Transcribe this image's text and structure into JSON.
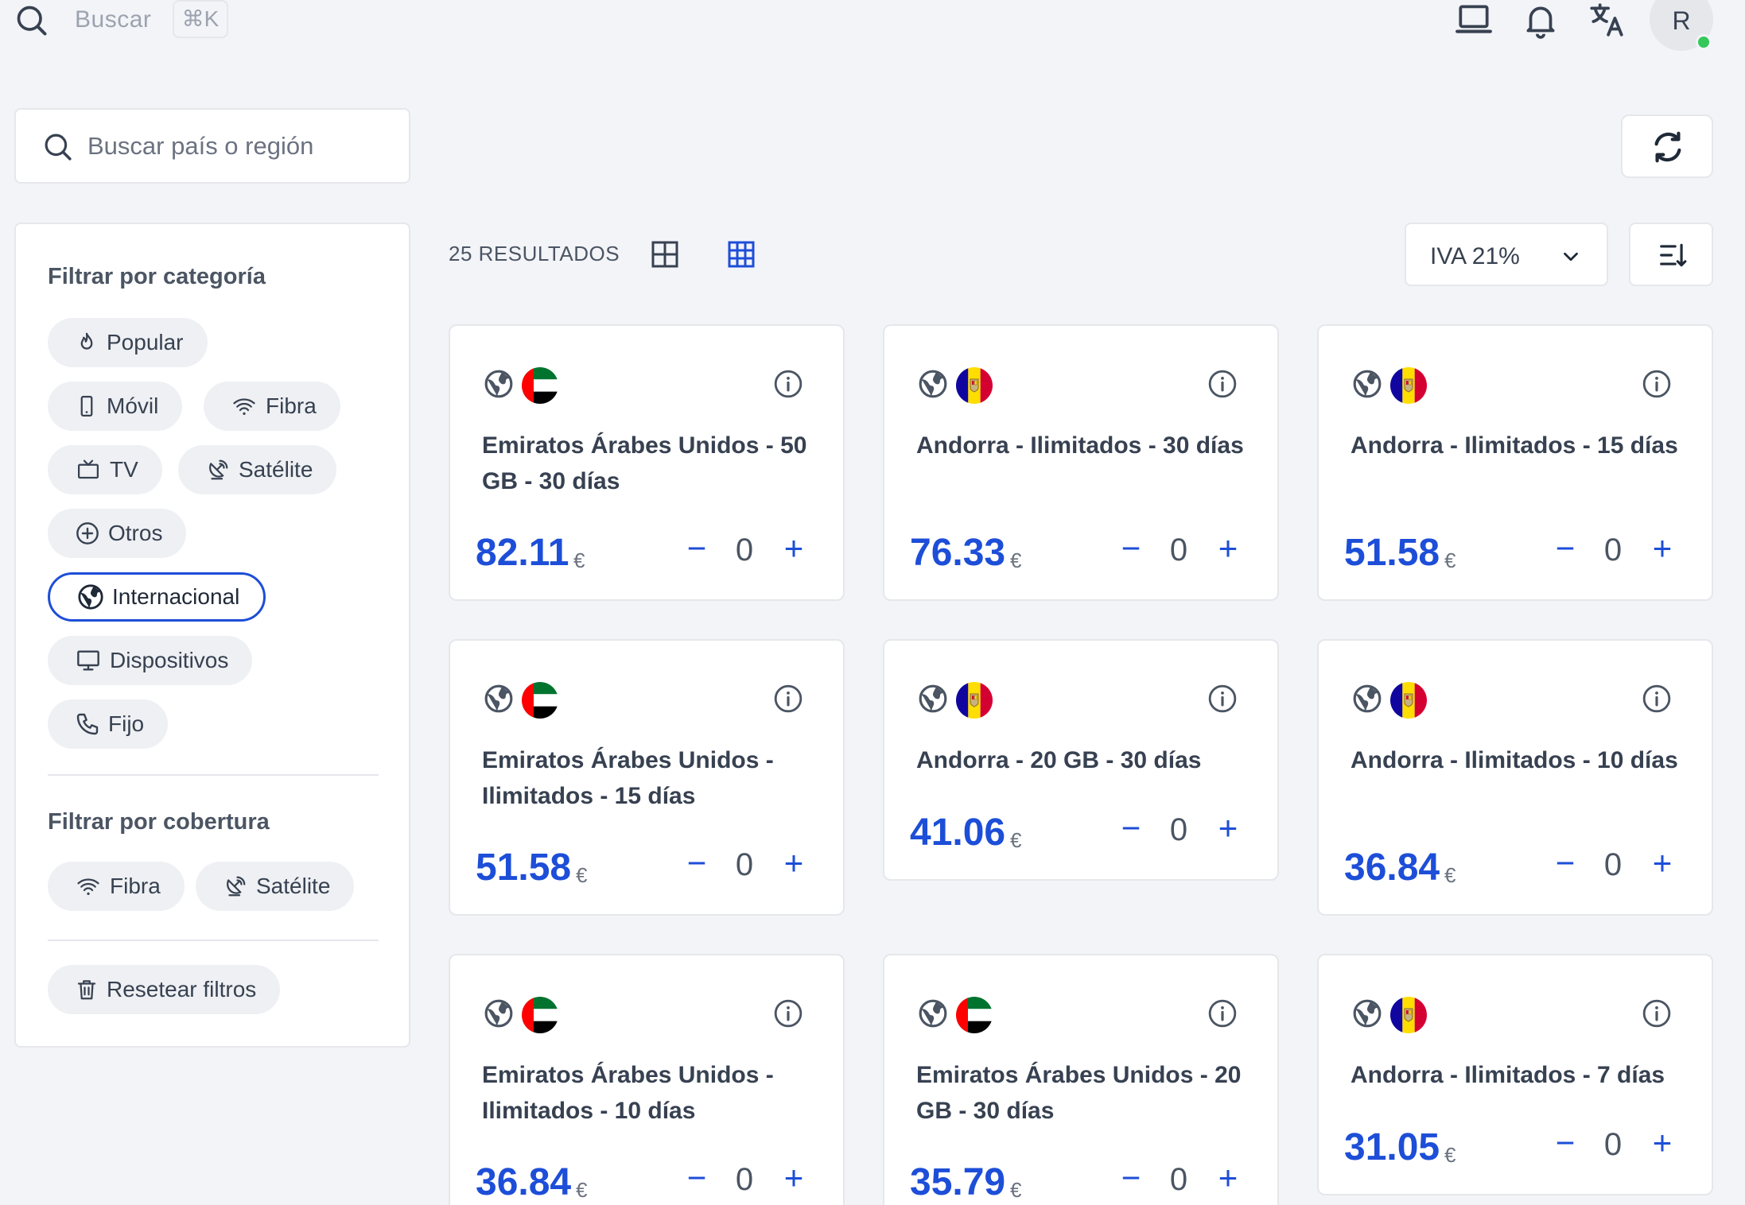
{
  "topbar": {
    "search_placeholder": "Buscar",
    "shortcut": "⌘K",
    "avatar_initial": "R"
  },
  "region_search": {
    "placeholder": "Buscar país o región"
  },
  "sidebar": {
    "category_title": "Filtrar por categoría",
    "categories": [
      {
        "label": "Popular",
        "icon": "flame-icon"
      },
      {
        "label": "Móvil",
        "icon": "phone-icon"
      },
      {
        "label": "Fibra",
        "icon": "wifi-icon"
      },
      {
        "label": "TV",
        "icon": "tv-icon"
      },
      {
        "label": "Satélite",
        "icon": "satellite-icon"
      },
      {
        "label": "Otros",
        "icon": "plus-circle-icon"
      },
      {
        "label": "Internacional",
        "icon": "globe-icon",
        "active": true
      },
      {
        "label": "Dispositivos",
        "icon": "monitor-icon"
      },
      {
        "label": "Fijo",
        "icon": "landline-icon"
      }
    ],
    "coverage_title": "Filtrar por cobertura",
    "coverage": [
      {
        "label": "Fibra",
        "icon": "wifi-icon"
      },
      {
        "label": "Satélite",
        "icon": "satellite-icon"
      }
    ],
    "reset_label": "Resetear filtros"
  },
  "results": {
    "count_label": "25 RESULTADOS",
    "iva_label": "IVA 21%"
  },
  "currency": "€",
  "cards": [
    {
      "flag": "uae",
      "title": "Emiratos Árabes Unidos - 50 GB - 30 días",
      "price": "82.11",
      "qty": "0"
    },
    {
      "flag": "andorra",
      "title": "Andorra - Ilimitados - 30 días",
      "price": "76.33",
      "qty": "0"
    },
    {
      "flag": "andorra",
      "title": "Andorra - Ilimitados - 15 días",
      "price": "51.58",
      "qty": "0"
    },
    {
      "flag": "uae",
      "title": "Emiratos Árabes Unidos - Ilimitados - 15 días",
      "price": "51.58",
      "qty": "0"
    },
    {
      "flag": "andorra",
      "title": "Andorra - 20 GB - 30 días",
      "price": "41.06",
      "qty": "0"
    },
    {
      "flag": "andorra",
      "title": "Andorra - Ilimitados - 10 días",
      "price": "36.84",
      "qty": "0"
    },
    {
      "flag": "uae",
      "title": "Emiratos Árabes Unidos - Ilimitados - 10 días",
      "price": "36.84",
      "qty": "0"
    },
    {
      "flag": "uae",
      "title": "Emiratos Árabes Unidos - 20 GB - 30 días",
      "price": "35.79",
      "qty": "0"
    },
    {
      "flag": "andorra",
      "title": "Andorra - Ilimitados - 7 días",
      "price": "31.05",
      "qty": "0"
    }
  ],
  "colors": {
    "accent": "#1d4ed8",
    "background": "#f3f4f8",
    "online": "#34c759"
  }
}
